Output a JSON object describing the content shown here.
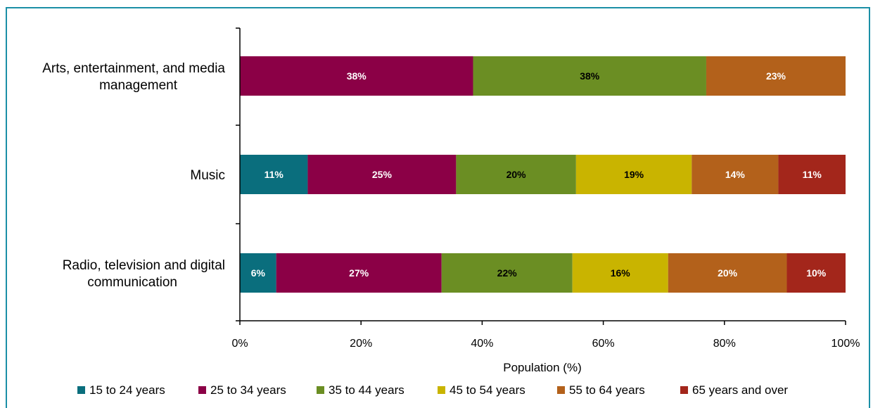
{
  "chart_data": {
    "type": "bar",
    "orientation": "horizontal",
    "stacked": true,
    "categories": [
      "Arts, entertainment, and media management",
      "Music",
      "Radio, television and digital communication"
    ],
    "category_lines": [
      [
        "Arts, entertainment, and media",
        "management"
      ],
      [
        "Music"
      ],
      [
        "Radio, television and digital",
        "communication"
      ]
    ],
    "series": [
      {
        "name": "15 to 24 years",
        "color": "#0a6e7d",
        "values": [
          0,
          11,
          6
        ]
      },
      {
        "name": "25 to 34 years",
        "color": "#8b0046",
        "values": [
          38,
          25,
          27
        ]
      },
      {
        "name": "35 to 44 years",
        "color": "#6b8e23",
        "values": [
          38,
          20,
          22
        ]
      },
      {
        "name": "45 to 54 years",
        "color": "#c9b400",
        "values": [
          0,
          19,
          16
        ]
      },
      {
        "name": "55 to 64 years",
        "color": "#b3611b",
        "values": [
          23,
          14,
          20
        ]
      },
      {
        "name": "65 years and over",
        "color": "#a3261b",
        "values": [
          0,
          11,
          10
        ]
      }
    ],
    "segment_widths": [
      [
        0,
        38.5,
        38.5,
        0,
        23,
        0
      ],
      [
        11.2,
        24.5,
        19.8,
        19.1,
        14.3,
        11.1
      ],
      [
        6,
        27.3,
        21.6,
        15.8,
        19.6,
        9.7
      ]
    ],
    "data_label_colors": [
      "#ffffff",
      "#ffffff",
      "#000000",
      "#000000",
      "#ffffff",
      "#ffffff"
    ],
    "xlabel": "Population (%)",
    "x_ticks": [
      "0%",
      "20%",
      "40%",
      "60%",
      "80%",
      "100%"
    ],
    "xlim": [
      0,
      100
    ],
    "grid": false,
    "legend_position": "bottom"
  }
}
